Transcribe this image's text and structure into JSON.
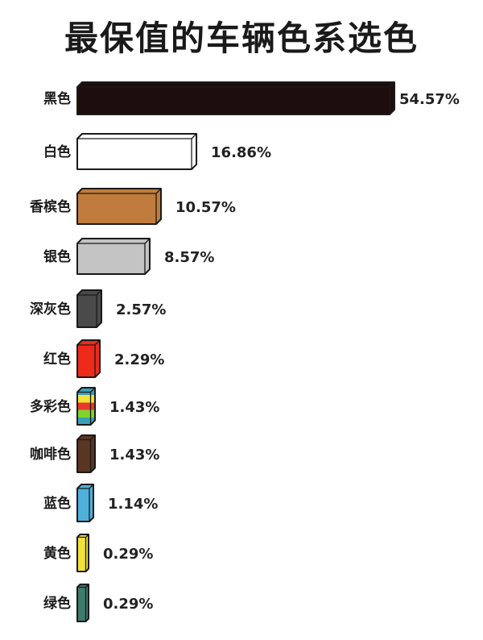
{
  "chart_data": {
    "type": "bar",
    "orientation": "horizontal",
    "title": "最保值的车辆色系选色",
    "categories": [
      "黑色",
      "白色",
      "香槟色",
      "银色",
      "深灰色",
      "红色",
      "多彩色",
      "咖啡色",
      "蓝色",
      "黄色",
      "绿色"
    ],
    "values": [
      54.57,
      16.86,
      10.57,
      8.57,
      2.57,
      2.29,
      1.43,
      1.43,
      1.14,
      0.29,
      0.29
    ],
    "value_labels": [
      "54.57%",
      "16.86%",
      "10.57%",
      "8.57%",
      "2.57%",
      "2.29%",
      "1.43%",
      "1.43%",
      "1.14%",
      "0.29%",
      "0.29%"
    ],
    "colors": [
      "#1e0d0d",
      "#ffffff",
      "#c07c3c",
      "#c4c4c4",
      "#4a4a4a",
      "#ee2a1a",
      "multicolor",
      "#5a3522",
      "#4fb0dc",
      "#f2e23a",
      "#3f7a6c"
    ],
    "multicolor_stripes": [
      "#3aa0b8",
      "#f2e23a",
      "#e83a2a",
      "#7ed52a",
      "#3aa0b8"
    ],
    "xlabel": "",
    "ylabel": "",
    "grid": false,
    "legend": "none"
  }
}
